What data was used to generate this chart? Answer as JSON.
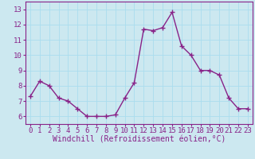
{
  "x": [
    0,
    1,
    2,
    3,
    4,
    5,
    6,
    7,
    8,
    9,
    10,
    11,
    12,
    13,
    14,
    15,
    16,
    17,
    18,
    19,
    20,
    21,
    22,
    23
  ],
  "y": [
    7.3,
    8.3,
    8.0,
    7.2,
    7.0,
    6.5,
    6.0,
    6.0,
    6.0,
    6.1,
    7.2,
    8.2,
    11.7,
    11.6,
    11.8,
    12.8,
    10.6,
    10.0,
    9.0,
    9.0,
    8.7,
    7.2,
    6.5,
    6.5
  ],
  "line_color": "#882288",
  "marker": "+",
  "marker_size": 4,
  "marker_linewidth": 1.0,
  "bg_color": "#cce8f0",
  "grid_color": "#aaddee",
  "xlabel": "Windchill (Refroidissement éolien,°C)",
  "xlim": [
    -0.5,
    23.5
  ],
  "ylim": [
    5.5,
    13.5
  ],
  "xticks": [
    0,
    1,
    2,
    3,
    4,
    5,
    6,
    7,
    8,
    9,
    10,
    11,
    12,
    13,
    14,
    15,
    16,
    17,
    18,
    19,
    20,
    21,
    22,
    23
  ],
  "yticks": [
    6,
    7,
    8,
    9,
    10,
    11,
    12,
    13
  ],
  "tick_fontsize": 6.5,
  "xlabel_fontsize": 7.0,
  "linewidth": 1.0,
  "spine_color": "#882288",
  "tick_color": "#882288"
}
